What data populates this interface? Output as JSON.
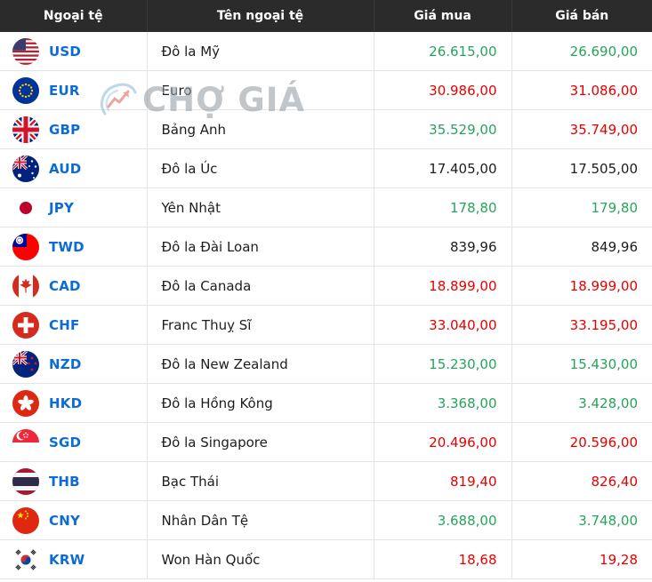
{
  "watermark": {
    "text": "CHỢ GIÁ"
  },
  "colors": {
    "green": "#27a35f",
    "red": "#e60000",
    "blue": "#0d6bd8"
  },
  "table": {
    "headers": [
      "Ngoại tệ",
      "Tên ngoại tệ",
      "Giá mua",
      "Giá bán"
    ],
    "rows": [
      {
        "flag": "usd",
        "code": "USD",
        "name": "Đô la Mỹ",
        "buy": "26.615,00",
        "buy_color": "green",
        "sell": "26.690,00",
        "sell_color": "green"
      },
      {
        "flag": "eur",
        "code": "EUR",
        "name": "Euro",
        "buy": "30.986,00",
        "buy_color": "red",
        "sell": "31.086,00",
        "sell_color": "red"
      },
      {
        "flag": "gbp",
        "code": "GBP",
        "name": "Bảng Anh",
        "buy": "35.529,00",
        "buy_color": "green",
        "sell": "35.749,00",
        "sell_color": "red"
      },
      {
        "flag": "aud",
        "code": "AUD",
        "name": "Đô la Úc",
        "buy": "17.405,00",
        "buy_color": "black",
        "sell": "17.505,00",
        "sell_color": "black"
      },
      {
        "flag": "jpy",
        "code": "JPY",
        "name": "Yên Nhật",
        "buy": "178,80",
        "buy_color": "green",
        "sell": "179,80",
        "sell_color": "green"
      },
      {
        "flag": "twd",
        "code": "TWD",
        "name": "Đô la Đài Loan",
        "buy": "839,96",
        "buy_color": "black",
        "sell": "849,96",
        "sell_color": "black"
      },
      {
        "flag": "cad",
        "code": "CAD",
        "name": "Đô la Canada",
        "buy": "18.899,00",
        "buy_color": "red",
        "sell": "18.999,00",
        "sell_color": "red"
      },
      {
        "flag": "chf",
        "code": "CHF",
        "name": "Franc Thuỵ Sĩ",
        "buy": "33.040,00",
        "buy_color": "red",
        "sell": "33.195,00",
        "sell_color": "red"
      },
      {
        "flag": "nzd",
        "code": "NZD",
        "name": "Đô la New Zealand",
        "buy": "15.230,00",
        "buy_color": "green",
        "sell": "15.430,00",
        "sell_color": "green"
      },
      {
        "flag": "hkd",
        "code": "HKD",
        "name": "Đô la Hồng Kông",
        "buy": "3.368,00",
        "buy_color": "green",
        "sell": "3.428,00",
        "sell_color": "green"
      },
      {
        "flag": "sgd",
        "code": "SGD",
        "name": "Đô la Singapore",
        "buy": "20.496,00",
        "buy_color": "red",
        "sell": "20.596,00",
        "sell_color": "red"
      },
      {
        "flag": "thb",
        "code": "THB",
        "name": "Bạc Thái",
        "buy": "819,40",
        "buy_color": "red",
        "sell": "826,40",
        "sell_color": "red"
      },
      {
        "flag": "cny",
        "code": "CNY",
        "name": "Nhân Dân Tệ",
        "buy": "3.688,00",
        "buy_color": "green",
        "sell": "3.748,00",
        "sell_color": "green"
      },
      {
        "flag": "krw",
        "code": "KRW",
        "name": "Won Hàn Quốc",
        "buy": "18,68",
        "buy_color": "red",
        "sell": "19,28",
        "sell_color": "red"
      }
    ]
  }
}
